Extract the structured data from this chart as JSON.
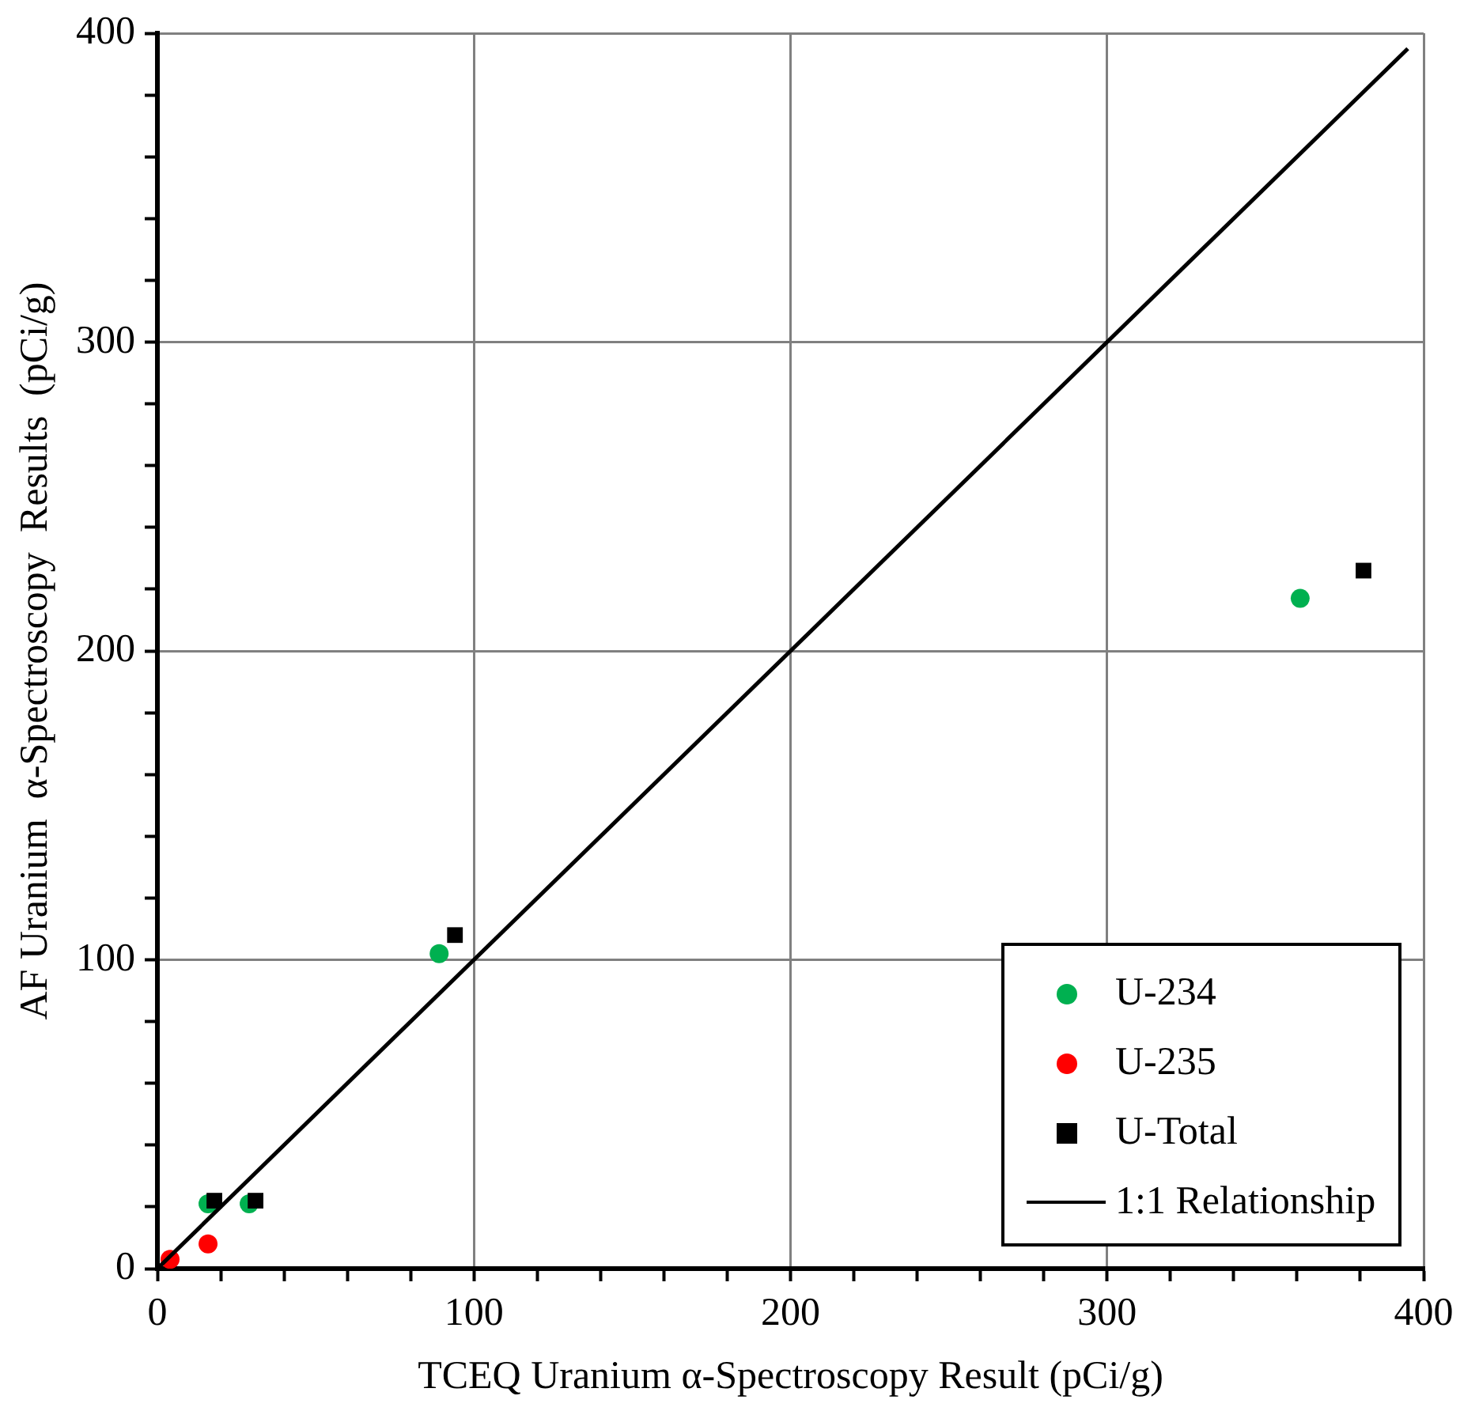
{
  "chart_data": {
    "type": "scatter",
    "xlabel": "TCEQ Uranium α-Spectroscopy Result (pCi/g)",
    "ylabel": "AF Uranium  α-Spectroscopy  Results  (pCi/g)",
    "xlim": [
      0,
      400
    ],
    "ylim": [
      0,
      400
    ],
    "xticks": [
      0,
      {
        "value": 20,
        "label": null
      },
      {
        "value": 40,
        "label": null
      },
      {
        "value": 60,
        "label": null
      },
      {
        "value": 80,
        "label": null
      },
      100,
      {
        "value": 120,
        "label": null
      },
      {
        "value": 140,
        "label": null
      },
      {
        "value": 160,
        "label": null
      },
      {
        "value": 180,
        "label": null
      },
      200,
      {
        "value": 220,
        "label": null
      },
      {
        "value": 240,
        "label": null
      },
      {
        "value": 260,
        "label": null
      },
      {
        "value": 280,
        "label": null
      },
      300,
      {
        "value": 320,
        "label": null
      },
      {
        "value": 340,
        "label": null
      },
      {
        "value": 360,
        "label": null
      },
      {
        "value": 380,
        "label": null
      },
      400
    ],
    "yticks": [
      0,
      {
        "value": 20,
        "label": null
      },
      {
        "value": 40,
        "label": null
      },
      {
        "value": 60,
        "label": null
      },
      {
        "value": 80,
        "label": null
      },
      100,
      {
        "value": 120,
        "label": null
      },
      {
        "value": 140,
        "label": null
      },
      {
        "value": 160,
        "label": null
      },
      {
        "value": 180,
        "label": null
      },
      200,
      {
        "value": 220,
        "label": null
      },
      {
        "value": 240,
        "label": null
      },
      {
        "value": 260,
        "label": null
      },
      {
        "value": 280,
        "label": null
      },
      300,
      {
        "value": 320,
        "label": null
      },
      {
        "value": 340,
        "label": null
      },
      {
        "value": 360,
        "label": null
      },
      {
        "value": 380,
        "label": null
      },
      400
    ],
    "grid": true,
    "legend": "bottom right",
    "series": [
      {
        "name": "U-234",
        "color": "#00b050",
        "marker": "circle",
        "x": [
          361,
          89,
          16,
          29
        ],
        "values": [
          217,
          102,
          21,
          21
        ]
      },
      {
        "name": "U-235",
        "color": "#ff0000",
        "marker": "circle",
        "x": [
          16,
          4
        ],
        "values": [
          8,
          3
        ]
      },
      {
        "name": "U-Total",
        "color": "#000000",
        "marker": "square",
        "x": [
          381,
          94,
          18,
          31
        ],
        "values": [
          226,
          108,
          22,
          22
        ]
      },
      {
        "name": "1:1 Relationship",
        "type": "line",
        "color": "#000000",
        "marker": "none",
        "x": [
          0,
          395
        ],
        "values": [
          0,
          395
        ]
      }
    ]
  }
}
